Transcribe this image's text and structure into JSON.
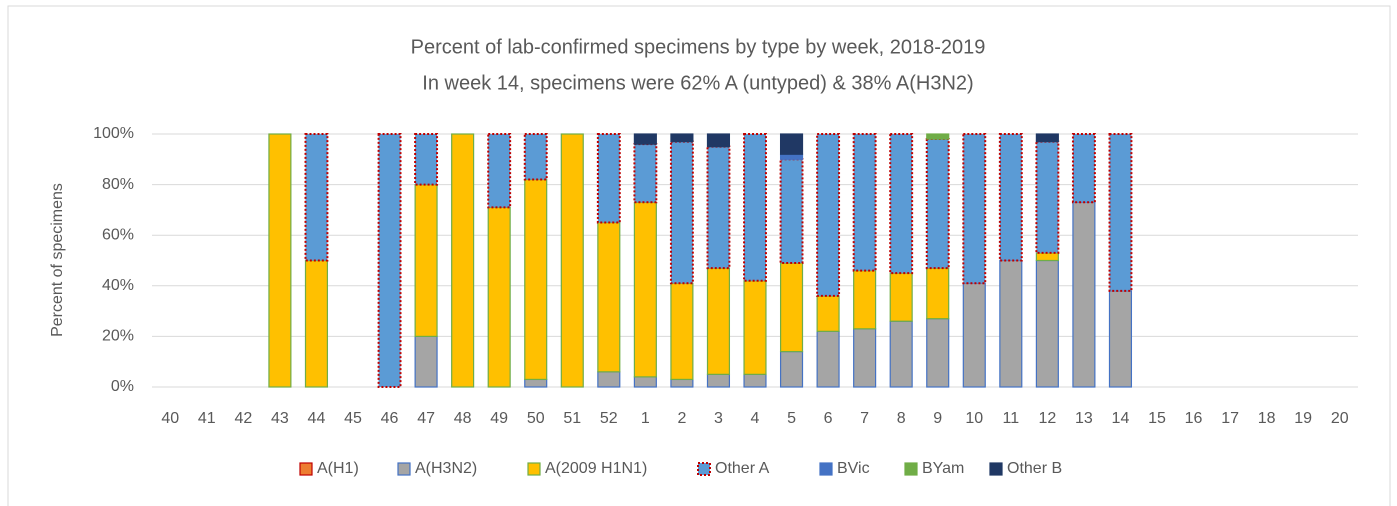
{
  "chart_data": {
    "type": "stacked_bar",
    "title": "Percent of lab-confirmed specimens by type by week, 2018-2019",
    "subtitle": "In week 14, specimens were 62% A (untyped) & 38% A(H3N2)",
    "y_label": "Percent of specimens",
    "categories": [
      "40",
      "41",
      "42",
      "43",
      "44",
      "45",
      "46",
      "47",
      "48",
      "49",
      "50",
      "51",
      "52",
      "1",
      "2",
      "3",
      "4",
      "5",
      "6",
      "7",
      "8",
      "9",
      "10",
      "11",
      "12",
      "13",
      "14",
      "15",
      "16",
      "17",
      "18",
      "19",
      "20"
    ],
    "series": [
      {
        "name": "A(H1)",
        "color": "#ed7d31",
        "edgecolor": "#c00000",
        "dotted": false,
        "values": [
          0,
          0,
          0,
          0,
          0,
          0,
          0,
          0,
          0,
          0,
          0,
          0,
          0,
          0,
          0,
          0,
          0,
          0,
          0,
          0,
          0,
          0,
          0,
          0,
          0,
          0,
          0,
          0,
          0,
          0,
          0,
          0,
          0
        ]
      },
      {
        "name": "A(H3N2)",
        "color": "#a5a5a5",
        "edgecolor": "#4472c4",
        "dotted": false,
        "values": [
          0,
          0,
          0,
          0,
          0,
          0,
          0,
          20,
          0,
          0,
          3,
          0,
          6,
          4,
          3,
          5,
          5,
          14,
          22,
          23,
          26,
          27,
          41,
          50,
          50,
          73,
          38,
          0,
          0,
          0,
          0,
          0,
          0
        ]
      },
      {
        "name": "A(2009 H1N1)",
        "color": "#ffc000",
        "edgecolor": "#70ad47",
        "dotted": false,
        "values": [
          0,
          0,
          0,
          100,
          50,
          0,
          0,
          60,
          100,
          71,
          79,
          100,
          59,
          69,
          38,
          42,
          37,
          35,
          14,
          23,
          19,
          20,
          0,
          0,
          3,
          0,
          0,
          0,
          0,
          0,
          0,
          0,
          0
        ]
      },
      {
        "name": "Other A",
        "color": "#5b9bd5",
        "edgecolor": "#c00000",
        "dotted": true,
        "values": [
          0,
          0,
          0,
          0,
          50,
          0,
          100,
          20,
          0,
          29,
          18,
          0,
          35,
          23,
          56,
          48,
          58,
          41,
          64,
          54,
          55,
          51,
          59,
          50,
          44,
          27,
          62,
          0,
          0,
          0,
          0,
          0,
          0
        ]
      },
      {
        "name": "BVic",
        "color": "#4472c4",
        "edgecolor": "#4472c4",
        "dotted": false,
        "values": [
          0,
          0,
          0,
          0,
          0,
          0,
          0,
          0,
          0,
          0,
          0,
          0,
          0,
          0,
          0,
          0,
          0,
          2,
          0,
          0,
          0,
          0,
          0,
          0,
          0,
          0,
          0,
          0,
          0,
          0,
          0,
          0,
          0
        ]
      },
      {
        "name": "BYam",
        "color": "#70ad47",
        "edgecolor": "#70ad47",
        "dotted": false,
        "values": [
          0,
          0,
          0,
          0,
          0,
          0,
          0,
          0,
          0,
          0,
          0,
          0,
          0,
          0,
          0,
          0,
          0,
          0,
          0,
          0,
          0,
          2,
          0,
          0,
          0,
          0,
          0,
          0,
          0,
          0,
          0,
          0,
          0
        ]
      },
      {
        "name": "Other B",
        "color": "#203864",
        "edgecolor": "#203864",
        "dotted": false,
        "values": [
          0,
          0,
          0,
          0,
          0,
          0,
          0,
          0,
          0,
          0,
          0,
          0,
          0,
          4,
          3,
          5,
          0,
          8,
          0,
          0,
          0,
          0,
          0,
          0,
          3,
          0,
          0,
          0,
          0,
          0,
          0,
          0,
          0
        ]
      }
    ],
    "ylim": [
      0,
      100
    ],
    "yticks": [
      {
        "value": 0,
        "label": "0%"
      },
      {
        "value": 20,
        "label": "20%"
      },
      {
        "value": 40,
        "label": "40%"
      },
      {
        "value": 60,
        "label": "60%"
      },
      {
        "value": 80,
        "label": "80%"
      },
      {
        "value": 100,
        "label": "100%"
      }
    ],
    "grid": true,
    "legend": "bottom"
  }
}
